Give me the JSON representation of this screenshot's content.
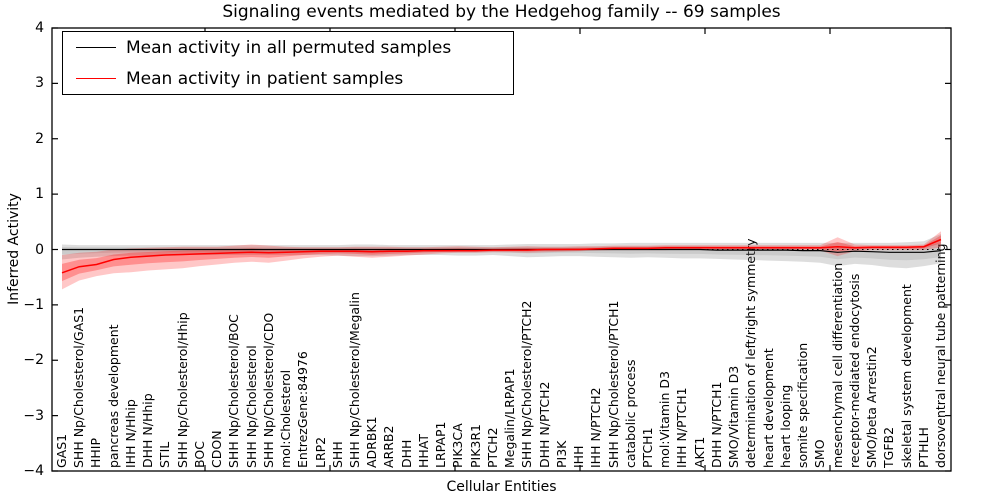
{
  "title": "Signaling events mediated by the Hedgehog family -- 69 samples",
  "axes": {
    "ylabel": "Inferred Activity",
    "xlabel": "Cellular Entities",
    "yticks": [
      4,
      3,
      2,
      1,
      0,
      -1,
      -2,
      -3,
      -4
    ],
    "ylim": [
      -4,
      4
    ]
  },
  "legend": {
    "position": "upper left",
    "items": [
      {
        "label": "Mean activity in all permuted samples",
        "color": "#000000"
      },
      {
        "label": "Mean activity in patient samples",
        "color": "#ff0000"
      }
    ]
  },
  "chart_data": {
    "type": "line",
    "title": "Signaling events mediated by the Hedgehog family -- 69 samples",
    "xlabel": "Cellular Entities",
    "ylabel": "Inferred Activity",
    "ylim": [
      -4,
      4
    ],
    "grid": false,
    "zero_line": {
      "style": "dotted",
      "color": "#000000",
      "y": 0
    },
    "categories": [
      "GAS1",
      "SHH Np/Cholesterol/GAS1",
      "HHIP",
      "pancreas development",
      "IHH N/Hhip",
      "DHH N/Hhip",
      "STIL",
      "SHH Np/Cholesterol/Hhip",
      "BOC",
      "CDON",
      "SHH Np/Cholesterol/BOC",
      "SHH Np/Cholesterol",
      "SHH Np/Cholesterol/CDO",
      "mol:Cholesterol",
      "EntrezGene:84976",
      "LRP2",
      "SHH",
      "SHH Np/Cholesterol/Megalin",
      "ADRBK1",
      "ARRB2",
      "DHH",
      "HHAT",
      "LRPAP1",
      "PIK3CA",
      "PIK3R1",
      "PTCH2",
      "Megalin/LRPAP1",
      "SHH Np/Cholesterol/PTCH2",
      "DHH N/PTCH2",
      "PI3K",
      "IHH",
      "IHH N/PTCH2",
      "SHH Np/Cholesterol/PTCH1",
      "catabolic process",
      "PTCH1",
      "mol:Vitamin D3",
      "IHH N/PTCH1",
      "AKT1",
      "DHH N/PTCH1",
      "SMO/Vitamin D3",
      "determination of left/right symmetry",
      "heart development",
      "heart looping",
      "somite specification",
      "SMO",
      "mesenchymal cell differentiation",
      "receptor-mediated endocytosis",
      "SMO/beta Arrestin2",
      "TGFB2",
      "skeletal system development",
      "PTHLH",
      "dorsoventral neural tube patterning"
    ],
    "series": [
      {
        "name": "Mean activity in all permuted samples",
        "color": "#000000",
        "band_color": "#808080",
        "values": [
          0,
          0,
          0,
          0,
          0,
          0,
          0,
          0,
          0,
          0,
          0,
          0,
          0,
          0,
          0,
          0,
          0,
          0,
          0,
          0,
          0,
          0,
          0,
          0,
          0,
          0,
          0,
          0,
          0,
          0,
          0,
          0,
          0,
          0,
          0,
          0,
          0,
          0,
          -0.01,
          -0.01,
          -0.01,
          -0.01,
          -0.01,
          -0.02,
          -0.02,
          -0.05,
          -0.03,
          -0.04,
          -0.05,
          -0.05,
          -0.05,
          -0.02
        ],
        "band_lo": [
          -0.18,
          -0.15,
          -0.13,
          -0.12,
          -0.11,
          -0.11,
          -0.1,
          -0.1,
          -0.1,
          -0.1,
          -0.1,
          -0.1,
          -0.1,
          -0.1,
          -0.1,
          -0.1,
          -0.11,
          -0.12,
          -0.12,
          -0.11,
          -0.1,
          -0.1,
          -0.1,
          -0.11,
          -0.11,
          -0.1,
          -0.12,
          -0.14,
          -0.13,
          -0.12,
          -0.12,
          -0.13,
          -0.14,
          -0.15,
          -0.14,
          -0.15,
          -0.16,
          -0.16,
          -0.17,
          -0.18,
          -0.19,
          -0.2,
          -0.21,
          -0.22,
          -0.24,
          -0.3,
          -0.26,
          -0.28,
          -0.32,
          -0.34,
          -0.3,
          -0.25
        ],
        "band_hi": [
          0.09,
          0.08,
          0.08,
          0.08,
          0.08,
          0.08,
          0.08,
          0.08,
          0.08,
          0.08,
          0.08,
          0.08,
          0.08,
          0.08,
          0.08,
          0.08,
          0.08,
          0.09,
          0.09,
          0.08,
          0.08,
          0.08,
          0.08,
          0.08,
          0.08,
          0.08,
          0.09,
          0.1,
          0.1,
          0.1,
          0.1,
          0.11,
          0.11,
          0.12,
          0.12,
          0.12,
          0.12,
          0.12,
          0.12,
          0.12,
          0.12,
          0.12,
          0.12,
          0.12,
          0.12,
          0.12,
          0.12,
          0.12,
          0.12,
          0.13,
          0.15,
          0.28
        ]
      },
      {
        "name": "Mean activity in patient samples",
        "color": "#ff0000",
        "band_color": "#ff6060",
        "values": [
          -0.42,
          -0.31,
          -0.27,
          -0.18,
          -0.14,
          -0.12,
          -0.1,
          -0.09,
          -0.08,
          -0.07,
          -0.06,
          -0.05,
          -0.06,
          -0.05,
          -0.04,
          -0.03,
          -0.03,
          -0.03,
          -0.04,
          -0.03,
          -0.03,
          -0.02,
          -0.02,
          -0.02,
          -0.02,
          -0.01,
          -0.01,
          -0.01,
          0.0,
          0.0,
          0.0,
          0.01,
          0.02,
          0.02,
          0.02,
          0.03,
          0.03,
          0.03,
          0.03,
          0.03,
          0.03,
          0.03,
          0.03,
          0.03,
          0.03,
          0.05,
          0.03,
          0.04,
          0.04,
          0.04,
          0.05,
          0.18
        ],
        "band_lo": [
          -0.72,
          -0.56,
          -0.48,
          -0.43,
          -0.41,
          -0.38,
          -0.36,
          -0.34,
          -0.3,
          -0.27,
          -0.24,
          -0.22,
          -0.24,
          -0.2,
          -0.16,
          -0.13,
          -0.11,
          -0.13,
          -0.15,
          -0.13,
          -0.11,
          -0.09,
          -0.07,
          -0.06,
          -0.06,
          -0.05,
          -0.05,
          -0.06,
          -0.05,
          -0.04,
          -0.03,
          -0.02,
          -0.01,
          -0.01,
          -0.01,
          -0.01,
          0.0,
          0.0,
          -0.01,
          -0.01,
          -0.01,
          -0.01,
          -0.01,
          -0.01,
          -0.02,
          -0.12,
          -0.03,
          -0.01,
          -0.01,
          -0.01,
          -0.01,
          0.04
        ],
        "band_hi": [
          -0.1,
          -0.06,
          -0.04,
          0.0,
          0.02,
          0.03,
          0.04,
          0.05,
          0.05,
          0.05,
          0.07,
          0.09,
          0.07,
          0.05,
          0.04,
          0.04,
          0.04,
          0.05,
          0.05,
          0.05,
          0.04,
          0.04,
          0.05,
          0.06,
          0.05,
          0.04,
          0.05,
          0.06,
          0.05,
          0.05,
          0.06,
          0.06,
          0.07,
          0.07,
          0.07,
          0.08,
          0.08,
          0.08,
          0.08,
          0.08,
          0.08,
          0.08,
          0.08,
          0.08,
          0.08,
          0.22,
          0.09,
          0.08,
          0.08,
          0.08,
          0.09,
          0.33
        ]
      }
    ],
    "legend_entries": [
      "Mean activity in all permuted samples",
      "Mean activity in patient samples"
    ]
  }
}
